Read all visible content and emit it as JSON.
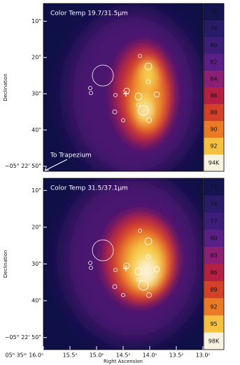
{
  "chart_data": [
    {
      "type": "heatmap",
      "title": "Color Temp 19.7/31.5μm",
      "annotation": "To Trapezium",
      "ylabel": "Declination",
      "ylim": [
        5.1,
        51.4
      ],
      "yticks": [
        {
          "value": 10,
          "label": "10\""
        },
        {
          "value": 20,
          "label": "20\""
        },
        {
          "value": 30,
          "label": "30\""
        },
        {
          "value": 40,
          "label": "40\""
        },
        {
          "value": 50,
          "label": "−05° 22' 50\""
        }
      ],
      "clim": [
        75,
        95
      ],
      "cticks": [
        76,
        78,
        80,
        82,
        84,
        86,
        88,
        90,
        92,
        {
          "value": 94,
          "label": "94K"
        }
      ],
      "colors": [
        "#141450",
        "#2a1a6a",
        "#3c1e7a",
        "#5a1f86",
        "#8a1f74",
        "#b41f44",
        "#d2402a",
        "#ea7a26",
        "#f6c040",
        "#f8f2e0"
      ]
    },
    {
      "type": "heatmap",
      "title": "Color Temp 31.5/37.1μm",
      "ylabel": "Declination",
      "xlabel": "Right Ascension",
      "ylim": [
        6.7,
        53.3
      ],
      "yticks": [
        {
          "value": 10,
          "label": "10\""
        },
        {
          "value": 20,
          "label": "20\""
        },
        {
          "value": 30,
          "label": "30\""
        },
        {
          "value": 40,
          "label": "40\""
        },
        {
          "value": 50,
          "label": "−05° 22' 50\""
        }
      ],
      "xlim": [
        16.0,
        13.0
      ],
      "xticks": [
        {
          "value": 16.0,
          "label": "05ʰ 35ᵐ 16.0ˢ"
        },
        {
          "value": 15.5,
          "label": "15.5ˢ"
        },
        {
          "value": 15.0,
          "label": "15.0ˢ"
        },
        {
          "value": 14.5,
          "label": "14.5ˢ"
        },
        {
          "value": 14.0,
          "label": "14.0ˢ"
        },
        {
          "value": 13.5,
          "label": "13.5ˢ"
        },
        {
          "value": 13.0,
          "label": "13.0ˢ"
        }
      ],
      "clim": [
        69.5,
        99.5
      ],
      "cticks": [
        71,
        74,
        77,
        80,
        83,
        86,
        89,
        92,
        95,
        {
          "value": 98,
          "label": "98K"
        }
      ],
      "colors": [
        "#141450",
        "#2a1a6a",
        "#3c1e7a",
        "#5a1f86",
        "#8a1f74",
        "#b41f44",
        "#d2402a",
        "#ea7a26",
        "#f6c040",
        "#f8f2e0"
      ]
    }
  ]
}
